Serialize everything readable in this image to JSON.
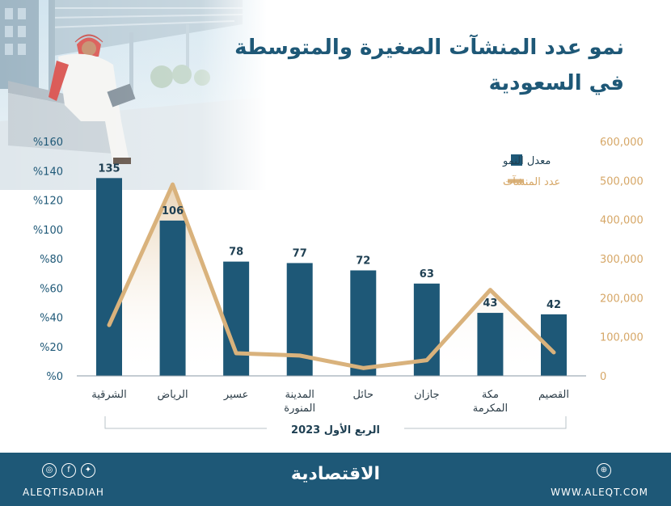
{
  "title": {
    "line1": "نمو عدد المنشآت الصغيرة والمتوسطة",
    "line2": "في السعودية"
  },
  "legend": {
    "growth_label": "معدل النمو",
    "count_label": "عدد المنشآت"
  },
  "colors": {
    "bar": "#1e5877",
    "line": "#d9b27c",
    "left_axis": "#1e5877",
    "right_axis": "#d6a767",
    "footer": "#1e5877"
  },
  "chart_data": {
    "type": "bar",
    "categories": [
      "الشرقية",
      "الرياض",
      "عسير",
      "المدينة المنورة",
      "حائل",
      "جازان",
      "مكة المكرمة",
      "القصيم"
    ],
    "category_lines": [
      [
        "الشرقية"
      ],
      [
        "الرياض"
      ],
      [
        "عسير"
      ],
      [
        "المدينة",
        "المنورة"
      ],
      [
        "حائل"
      ],
      [
        "جازان"
      ],
      [
        "مكة",
        "المكرمة"
      ],
      [
        "القصيم"
      ]
    ],
    "series": [
      {
        "name": "معدل النمو",
        "type": "bar",
        "axis": "left",
        "values": [
          135,
          106,
          78,
          77,
          72,
          63,
          43,
          42
        ]
      },
      {
        "name": "عدد المنشآت",
        "type": "line",
        "axis": "right",
        "values": [
          130000,
          490000,
          58000,
          52000,
          20000,
          40000,
          220000,
          60000
        ]
      }
    ],
    "left_axis": {
      "ylim": [
        0,
        160
      ],
      "ticks": [
        "%0",
        "%20",
        "%40",
        "%60",
        "%80",
        "%100",
        "%120",
        "%140",
        "%160"
      ]
    },
    "right_axis": {
      "ylim": [
        0,
        600000
      ],
      "ticks": [
        "0",
        "100,000",
        "200,000",
        "300,000",
        "400,000",
        "500,000",
        "600,000"
      ]
    },
    "period_label": "الربع الأول 2023",
    "grid": false,
    "legend_position": "top-right"
  },
  "footer": {
    "handle": "ALEQTISADIAH",
    "brand": "الاقتصادية",
    "website": "WWW.ALEQT.COM",
    "social_icons": [
      "instagram-icon",
      "facebook-icon",
      "twitter-icon"
    ],
    "web_icon": "globe-icon"
  }
}
